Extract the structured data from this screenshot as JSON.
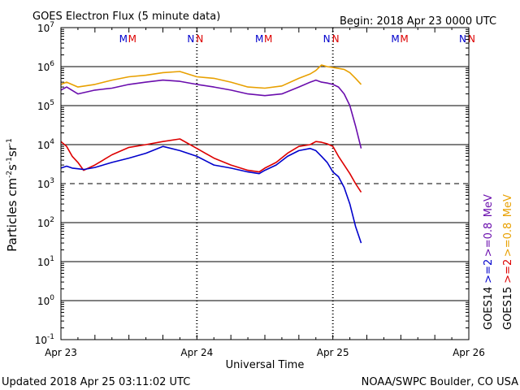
{
  "chart_data": {
    "type": "line",
    "title": "GOES Electron Flux (5 minute data)",
    "begin_label": "Begin: 2018 Apr 23 0000 UTC",
    "ylabel": "Particles cm-2s-1sr-1",
    "xlabel": "Universal Time",
    "yscale": "log",
    "ylim": [
      0.1,
      10000000
    ],
    "ytick_labels": [
      {
        "base": "10",
        "exp": "7"
      },
      {
        "base": "10",
        "exp": "6"
      },
      {
        "base": "10",
        "exp": "5"
      },
      {
        "base": "10",
        "exp": "4"
      },
      {
        "base": "10",
        "exp": "3"
      },
      {
        "base": "10",
        "exp": "2"
      },
      {
        "base": "10",
        "exp": "1"
      },
      {
        "base": "10",
        "exp": "0"
      },
      {
        "base": "10",
        "exp": "-1"
      }
    ],
    "xlim": [
      0,
      72
    ],
    "x_unit": "hours since 2018 Apr 23 0000 UTC",
    "xtick_labels": [
      "Apr 23",
      "Apr 24",
      "Apr 25",
      "Apr 26"
    ],
    "threshold_line": 1000,
    "noon_markers": [
      {
        "hour": 12,
        "labels": [
          "M",
          "M"
        ]
      },
      {
        "hour": 24,
        "labels": [
          "N",
          "N"
        ]
      },
      {
        "hour": 36,
        "labels": [
          "M",
          "M"
        ]
      },
      {
        "hour": 48,
        "labels": [
          "N",
          "N"
        ]
      },
      {
        "hour": 60,
        "labels": [
          "M",
          "M"
        ]
      },
      {
        "hour": 72,
        "labels": [
          "N",
          "N"
        ]
      }
    ],
    "right_legend": {
      "col1": [
        {
          "text": "GOES14",
          "color": "#000000"
        },
        {
          "text": ">=2",
          "color": "#0000cc"
        },
        {
          "text": ">=0.8",
          "color": "#6a0dad"
        },
        {
          "text": "MeV",
          "color": "#6a0dad"
        }
      ],
      "col2": [
        {
          "text": "GOES15",
          "color": "#000000"
        },
        {
          "text": ">=2",
          "color": "#dd0000"
        },
        {
          "text": ">=0.8",
          "color": "#e8a000"
        },
        {
          "text": "MeV",
          "color": "#e8a000"
        }
      ]
    },
    "series": [
      {
        "name": "GOES15 >=0.8 MeV",
        "color": "#e8a000",
        "x": [
          0,
          1,
          3,
          6,
          9,
          12,
          15,
          18,
          21,
          24,
          27,
          30,
          33,
          36,
          39,
          42,
          44,
          45,
          46,
          47,
          48,
          49,
          50,
          51,
          52,
          53
        ],
        "y": [
          350000,
          400000,
          300000,
          350000,
          450000,
          550000,
          600000,
          700000,
          750000,
          550000,
          500000,
          400000,
          300000,
          280000,
          320000,
          500000,
          650000,
          800000,
          1100000,
          1000000,
          950000,
          900000,
          850000,
          700000,
          500000,
          350000
        ]
      },
      {
        "name": "GOES14 >=0.8 MeV",
        "color": "#6a0dad",
        "x": [
          0,
          1,
          3,
          6,
          9,
          12,
          15,
          18,
          21,
          24,
          27,
          30,
          33,
          36,
          39,
          42,
          44,
          45,
          46,
          47,
          48,
          49,
          50,
          51,
          52,
          53
        ],
        "y": [
          250000,
          300000,
          200000,
          250000,
          280000,
          350000,
          400000,
          450000,
          420000,
          350000,
          300000,
          250000,
          200000,
          180000,
          200000,
          300000,
          400000,
          450000,
          400000,
          380000,
          350000,
          300000,
          200000,
          100000,
          30000,
          8000
        ]
      },
      {
        "name": "GOES15 >=2 MeV",
        "color": "#dd0000",
        "x": [
          0,
          1,
          2,
          3,
          4,
          6,
          9,
          12,
          15,
          18,
          21,
          24,
          27,
          30,
          33,
          35,
          36,
          38,
          40,
          42,
          44,
          45,
          46,
          47,
          48,
          49,
          50,
          51,
          52,
          53
        ],
        "y": [
          12000,
          9000,
          5000,
          3500,
          2200,
          3000,
          5500,
          8500,
          10000,
          12000,
          14000,
          8000,
          4500,
          3000,
          2200,
          2000,
          2500,
          3500,
          6000,
          9000,
          10000,
          12000,
          11500,
          10500,
          9000,
          5000,
          3000,
          1800,
          1000,
          600
        ]
      },
      {
        "name": "GOES14 >=2 MeV",
        "color": "#0000cc",
        "x": [
          0,
          1,
          2,
          3,
          4,
          6,
          9,
          12,
          15,
          18,
          21,
          24,
          27,
          30,
          33,
          35,
          36,
          38,
          40,
          42,
          44,
          45,
          46,
          47,
          48,
          49,
          50,
          51,
          52,
          53
        ],
        "y": [
          2500,
          2800,
          2500,
          2400,
          2300,
          2600,
          3500,
          4500,
          6000,
          9000,
          7000,
          5000,
          3000,
          2500,
          2000,
          1800,
          2200,
          3000,
          5000,
          7000,
          8000,
          7000,
          5000,
          3500,
          2000,
          1500,
          800,
          300,
          80,
          30
        ]
      }
    ]
  },
  "footer": {
    "updated": "Updated 2018 Apr 25 03:11:02 UTC",
    "credit": "NOAA/SWPC Boulder, CO USA"
  },
  "colors": {
    "frame": "#000000",
    "marker_blue": "#0000cc",
    "marker_red": "#dd0000"
  }
}
